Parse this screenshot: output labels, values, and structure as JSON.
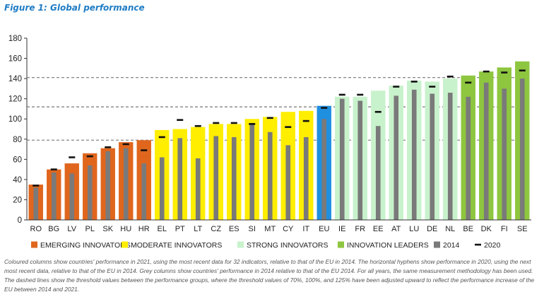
{
  "figure_title": "Figure 1: Global performance",
  "caption": "Coloured columns show countries' performance in 2021, using the most recent data for 32 indicators, relative to that of the EU in 2014. The horizontal hyphens show performance in 2020, using the next most recent data, relative to that of the EU in 2014. Grey columns show countries' performance in 2014 relative to that of the EU 2014. For all years, the same measurement methodology has been used. The dashed lines show the threshold values between the performance groups, where the threshold values of 70%, 100%, and 125% have been adjusted upward to reflect the performance increase of the EU between 2014 and 2021.",
  "chart_data": {
    "type": "bar",
    "title": "",
    "xlabel": "",
    "ylabel": "",
    "ylim": [
      0,
      180
    ],
    "yticks": [
      0,
      20,
      40,
      60,
      80,
      100,
      120,
      140,
      160,
      180
    ],
    "grid": false,
    "legend_position": "bottom",
    "categories": [
      "RO",
      "BG",
      "LV",
      "PL",
      "SK",
      "HU",
      "HR",
      "EL",
      "PT",
      "LT",
      "CZ",
      "ES",
      "SI",
      "MT",
      "CY",
      "IT",
      "EU",
      "IE",
      "FR",
      "EE",
      "AT",
      "LU",
      "DE",
      "NL",
      "BE",
      "DK",
      "FI",
      "SE"
    ],
    "groups": [
      "emerging",
      "emerging",
      "emerging",
      "emerging",
      "emerging",
      "emerging",
      "emerging",
      "moderate",
      "moderate",
      "moderate",
      "moderate",
      "moderate",
      "moderate",
      "moderate",
      "moderate",
      "moderate",
      "eu",
      "strong",
      "strong",
      "strong",
      "strong",
      "strong",
      "strong",
      "strong",
      "leader",
      "leader",
      "leader",
      "leader"
    ],
    "series": [
      {
        "name": "2021",
        "values": [
          35,
          50,
          56,
          66,
          71,
          77,
          79,
          89,
          90,
          92,
          95,
          95,
          100,
          102,
          107,
          108,
          113,
          122,
          122,
          128,
          133,
          138,
          137,
          140,
          143,
          147,
          151,
          157
        ]
      },
      {
        "name": "2014",
        "values": [
          32,
          47,
          46,
          54,
          68,
          71,
          56,
          62,
          81,
          61,
          83,
          82,
          96,
          87,
          74,
          82,
          100,
          120,
          118,
          93,
          123,
          129,
          125,
          126,
          122,
          136,
          130,
          140
        ]
      },
      {
        "name": "2020",
        "values": [
          34,
          50,
          62,
          63,
          72,
          75,
          69,
          82,
          99,
          93,
          96,
          96,
          95,
          101,
          92,
          98,
          111,
          124,
          124,
          107,
          132,
          137,
          132,
          142,
          136,
          147,
          146,
          148
        ]
      }
    ],
    "thresholds": [
      79,
      112,
      141
    ],
    "colors": {
      "emerging": "#e0661d",
      "moderate": "#ffee00",
      "strong": "#c8f2cc",
      "leader": "#8ec63f",
      "eu": "#1f8fe0",
      "grey": "#7a7a7a",
      "hyphen": "#111111"
    },
    "legend": [
      {
        "key": "emerging",
        "label": "EMERGING INNOVATORS",
        "marker": "square"
      },
      {
        "key": "moderate",
        "label": "MODERATE INNOVATORS",
        "marker": "square"
      },
      {
        "key": "strong",
        "label": "STRONG INNOVATORS",
        "marker": "square"
      },
      {
        "key": "leader",
        "label": "INNOVATION LEADERS",
        "marker": "square"
      },
      {
        "key": "grey",
        "label": "2014",
        "marker": "square"
      },
      {
        "key": "hyphen",
        "label": "2020",
        "marker": "dash"
      }
    ]
  }
}
